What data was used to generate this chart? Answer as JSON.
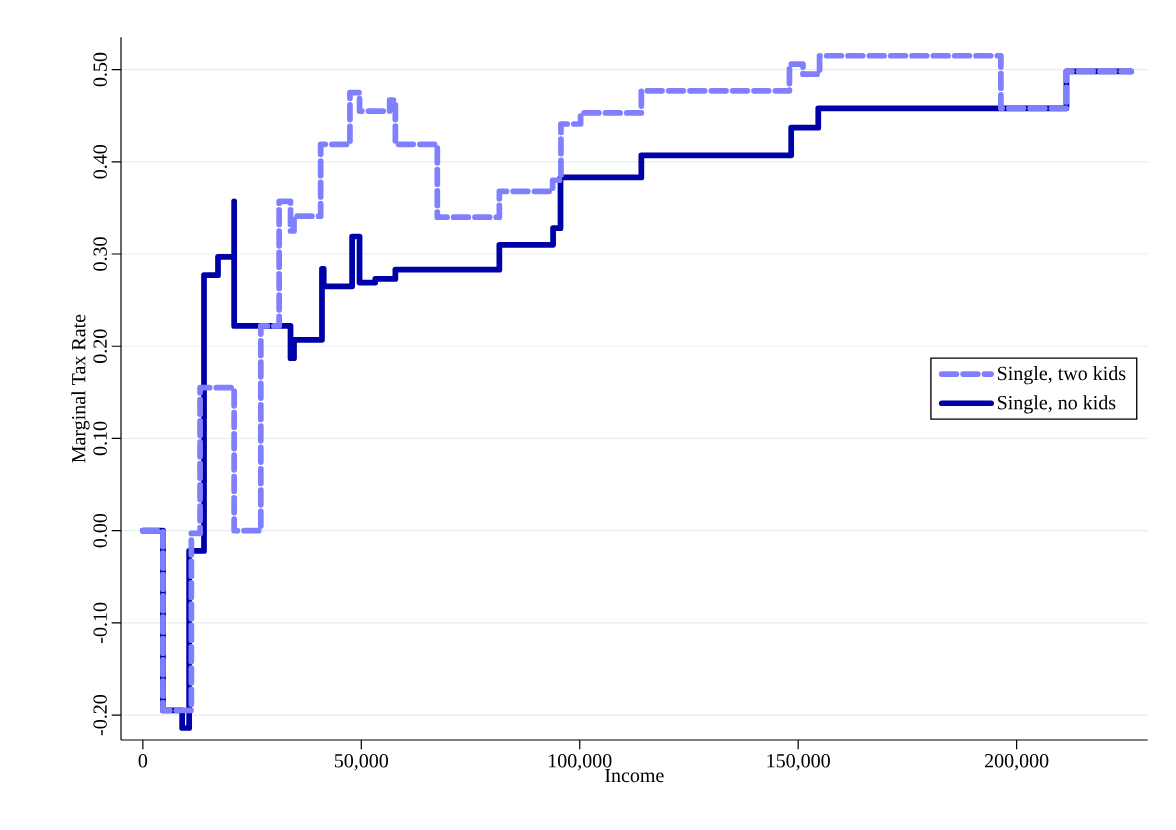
{
  "chart_data": {
    "type": "line",
    "xlabel": "Income",
    "ylabel": "Marginal Tax Rate",
    "xlim": [
      -5000,
      230000
    ],
    "ylim": [
      -0.227,
      0.535
    ],
    "xticks": [
      0,
      {
        "value": 50000,
        "label": "50,000"
      },
      {
        "value": 100000,
        "label": "100,000"
      },
      {
        "value": 150000,
        "label": "150,000"
      },
      {
        "value": 200000,
        "label": "200,000"
      }
    ],
    "yticks": [
      {
        "value": -0.2,
        "label": "-0.20"
      },
      {
        "value": -0.1,
        "label": "-0.10"
      },
      {
        "value": 0,
        "label": "0.00"
      },
      {
        "value": 0.1,
        "label": "0.10"
      },
      {
        "value": 0.2,
        "label": "0.20"
      },
      {
        "value": 0.3,
        "label": "0.30"
      },
      {
        "value": 0.4,
        "label": "0.40"
      },
      {
        "value": 0.5,
        "label": "0.50"
      }
    ],
    "grid": "y",
    "legend": "right",
    "series": [
      {
        "name": "Single, two kids",
        "color": "#8080ff",
        "line_style": "dashed",
        "x": [
          0,
          4600,
          4600,
          10000,
          11100,
          11100,
          13100,
          13100,
          20900,
          20900,
          27000,
          27000,
          31200,
          31200,
          33800,
          33800,
          34600,
          34600,
          40700,
          40700,
          47400,
          47400,
          49600,
          49600,
          56500,
          56500,
          57800,
          57800,
          67400,
          67400,
          81600,
          81600,
          93800,
          93800,
          95700,
          95700,
          100200,
          100200,
          114100,
          114100,
          148000,
          148000,
          151100,
          151100,
          154900,
          154900,
          196400,
          196400,
          211400,
          211400,
          226200
        ],
        "values": [
          0,
          0,
          -0.195,
          -0.195,
          -0.195,
          -0.003,
          -0.003,
          0.155,
          0.155,
          0.0,
          0.0,
          0.222,
          0.222,
          0.357,
          0.357,
          0.325,
          0.325,
          0.341,
          0.341,
          0.419,
          0.419,
          0.475,
          0.475,
          0.455,
          0.455,
          0.467,
          0.467,
          0.419,
          0.419,
          0.34,
          0.34,
          0.368,
          0.368,
          0.38,
          0.38,
          0.441,
          0.441,
          0.453,
          0.453,
          0.477,
          0.477,
          0.506,
          0.506,
          0.495,
          0.495,
          0.515,
          0.515,
          0.458,
          0.458,
          0.498,
          0.498
        ]
      },
      {
        "name": "Single, no kids",
        "color": "#0000a8",
        "line_style": "solid",
        "x": [
          0,
          4600,
          4600,
          9000,
          9000,
          10600,
          10600,
          14000,
          14000,
          17200,
          17200,
          20900,
          20900,
          20900,
          33800,
          33800,
          34600,
          34600,
          41000,
          41000,
          41400,
          41400,
          47900,
          47900,
          49600,
          49600,
          53200,
          53200,
          57800,
          57800,
          81600,
          81600,
          93900,
          93900,
          95600,
          95600,
          114100,
          114100,
          148400,
          148400,
          154600,
          154600,
          211400,
          211400,
          226200
        ],
        "values": [
          0,
          0,
          -0.195,
          -0.195,
          -0.214,
          -0.214,
          -0.022,
          -0.022,
          0.277,
          0.277,
          0.297,
          0.297,
          0.357,
          0.222,
          0.222,
          0.187,
          0.187,
          0.207,
          0.207,
          0.284,
          0.284,
          0.265,
          0.265,
          0.319,
          0.319,
          0.269,
          0.269,
          0.273,
          0.273,
          0.283,
          0.283,
          0.31,
          0.31,
          0.328,
          0.328,
          0.383,
          0.383,
          0.407,
          0.407,
          0.437,
          0.437,
          0.458,
          0.458,
          0.498,
          0.498
        ]
      }
    ]
  }
}
